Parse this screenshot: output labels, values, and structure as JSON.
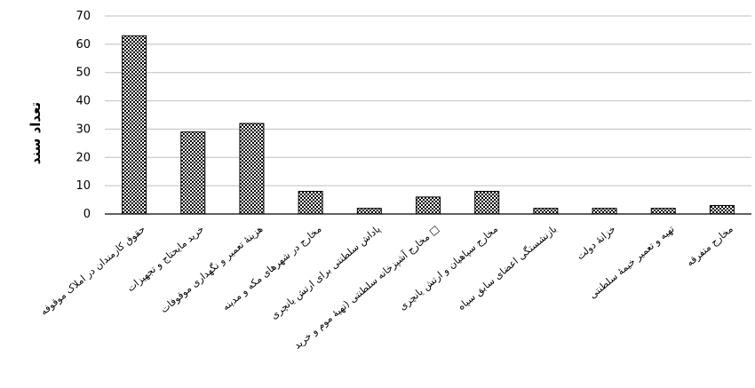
{
  "chart_data": {
    "type": "bar",
    "ylabel": "تعداد سند",
    "ylim": [
      0,
      70
    ],
    "yticks": [
      0,
      10,
      20,
      30,
      40,
      50,
      60,
      70
    ],
    "grid": true,
    "bar_pattern": "checkerboard",
    "colors": {
      "bar_fill": "#000000",
      "bar_pattern_light": "#ffffff",
      "grid": "#bfbfbf",
      "axis": "#000000"
    },
    "categories": [
      "حقوق کارمندان در املاک موقوفه",
      "خرید مایحتاج و تجهیزات",
      "هزینهٔ تعمیر و نگهداری موقوفات",
      "مخارج در شهرهای مکه و مدینه",
      "پاداش سلطنتی برای ارتش یانچری",
      "مخارج آشپزخانه سلطنتی (تهیهٔ موم و خرید □",
      "مخارج سپاهیان و ارتش یانچری",
      "بازنشستگی اعضای سابق سپاه",
      "خزانهٔ دولت",
      "تهیه و تعمیر خیمهٔ سلطنتی",
      "مخارج متفرقه"
    ],
    "values": [
      63,
      29,
      32,
      8,
      2,
      6,
      8,
      2,
      2,
      2,
      3
    ]
  }
}
